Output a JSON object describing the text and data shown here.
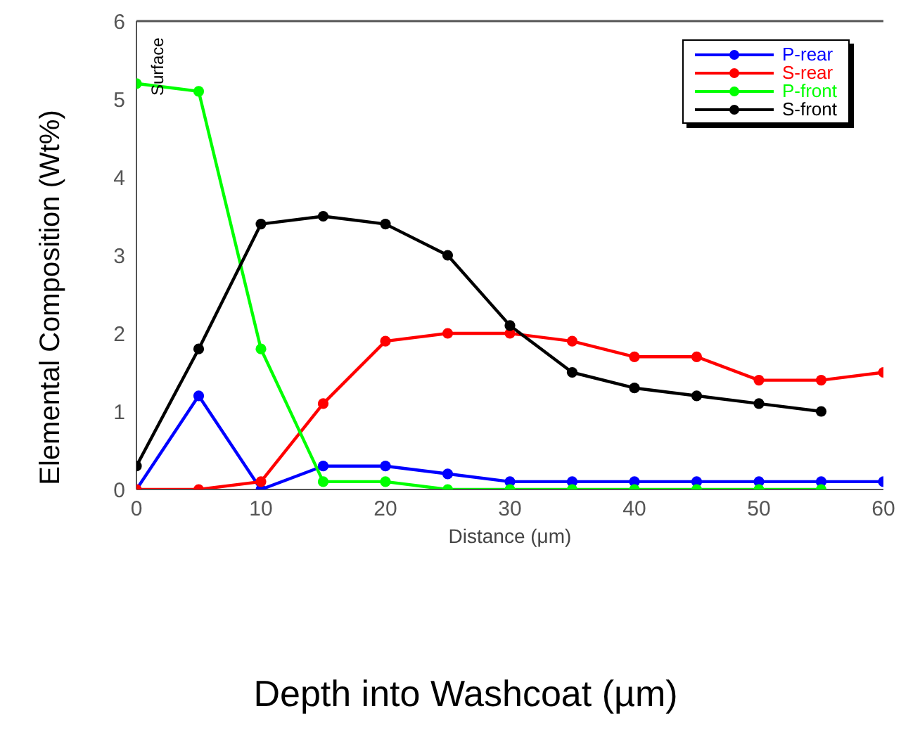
{
  "chart_data": {
    "type": "line",
    "title": "Depth into Washcoat (µm)",
    "xlabel": "Distance (μm)",
    "ylabel": "Elemental Composition (Wt%)",
    "x": [
      0,
      5,
      10,
      15,
      20,
      25,
      30,
      35,
      40,
      45,
      50,
      55,
      60
    ],
    "series": [
      {
        "name": "P-rear",
        "color": "#0000ff",
        "values": [
          0,
          1.2,
          0,
          0.3,
          0.3,
          0.2,
          0.1,
          0.1,
          0.1,
          0.1,
          0.1,
          0.1,
          0.1
        ]
      },
      {
        "name": "S-rear",
        "color": "#ff0000",
        "values": [
          0,
          0,
          0.1,
          1.1,
          1.9,
          2,
          2,
          1.9,
          1.7,
          1.7,
          1.4,
          1.4,
          1.5
        ]
      },
      {
        "name": "P-front",
        "color": "#00ff00",
        "values": [
          5.2,
          5.1,
          1.8,
          0.1,
          0.1,
          0,
          0,
          0,
          0,
          0,
          0,
          0,
          null
        ]
      },
      {
        "name": "S-front",
        "color": "#000000",
        "values": [
          0.3,
          1.8,
          3.4,
          3.5,
          3.4,
          3,
          2.1,
          1.5,
          1.3,
          1.2,
          1.1,
          1.0,
          null
        ]
      }
    ],
    "xlim": [
      0,
      60
    ],
    "xticks": [
      0,
      10,
      20,
      30,
      40,
      50,
      60
    ],
    "ylim": [
      0,
      6
    ],
    "yticks": [
      0,
      1,
      2,
      3,
      4,
      5,
      6
    ],
    "annotations": [
      "Surface"
    ],
    "legend": "top right",
    "grid": false,
    "marker": "circle",
    "line_style": "solid"
  }
}
